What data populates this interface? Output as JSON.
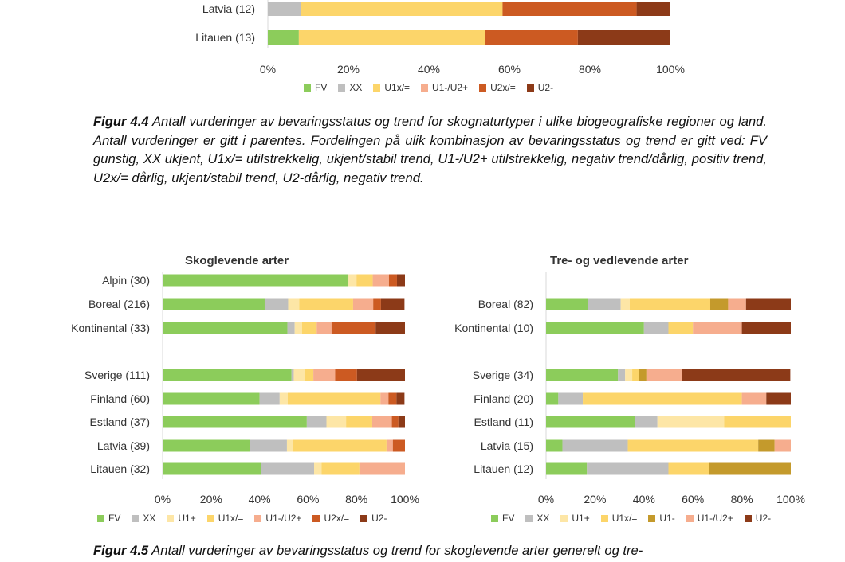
{
  "colors": {
    "FV": "#8ccc5b",
    "XX": "#bfbfbf",
    "U1+": "#fde6a6",
    "U1x": "#fcd56a",
    "U1-": "#c49a2c",
    "U1-/U2+": "#f6ad8e",
    "U2x": "#cc5a22",
    "U2-": "#8c3a18",
    "axis": "#d9d9d9"
  },
  "figure4_4": {
    "caption_label": "Figur 4.4",
    "caption_text": " Antall vurderinger av bevaringsstatus og trend for skognaturtyper i ulike biogeografiske regioner og land. Antall vurderinger er gitt i parentes. Fordelingen på ulik kombinasjon av bevaringsstatus og trend er gitt ved: FV gunstig, XX ukjent, U1x/= utilstrekkelig, ukjent/stabil trend, U1-/U2+ utilstrekkelig, negativ trend/dårlig, positiv trend, U2x/= dårlig, ukjent/stabil trend, U2-dårlig, negativ trend.",
    "legend": [
      {
        "key": "FV",
        "label": "FV"
      },
      {
        "key": "XX",
        "label": "XX"
      },
      {
        "key": "U1x",
        "label": "U1x/="
      },
      {
        "key": "U1-/U2+",
        "label": "U1-/U2+"
      },
      {
        "key": "U2x",
        "label": "U2x/="
      },
      {
        "key": "U2-",
        "label": "U2-"
      }
    ]
  },
  "figure4_5": {
    "caption_label": "Figur 4.5",
    "caption_text": " Antall vurderinger av bevaringsstatus og trend for skoglevende arter generelt og tre-"
  },
  "chart_data": [
    {
      "type": "bar",
      "orientation": "horizontal",
      "stacked": true,
      "title": "",
      "ticks": [
        "0%",
        "20%",
        "40%",
        "60%",
        "80%",
        "100%"
      ],
      "xlim": [
        0,
        100
      ],
      "categories": [
        "Latvia (12)",
        "Litauen (13)"
      ],
      "series": [
        {
          "name": "FV",
          "key": "FV",
          "values": [
            0,
            7.7
          ]
        },
        {
          "name": "XX",
          "key": "XX",
          "values": [
            8.3,
            0
          ]
        },
        {
          "name": "U1x/=",
          "key": "U1x",
          "values": [
            50,
            46.2
          ]
        },
        {
          "name": "U1-/U2+",
          "key": "U1-/U2+",
          "values": [
            0,
            0
          ]
        },
        {
          "name": "U2x/=",
          "key": "U2x",
          "values": [
            33.3,
            23.1
          ]
        },
        {
          "name": "U2-",
          "key": "U2-",
          "values": [
            8.3,
            23.1
          ]
        }
      ]
    },
    {
      "type": "bar",
      "orientation": "horizontal",
      "stacked": true,
      "title": "Skoglevende arter",
      "ticks": [
        "0%",
        "20%",
        "40%",
        "60%",
        "80%",
        "100%"
      ],
      "xlim": [
        0,
        100
      ],
      "categories": [
        "Alpin (30)",
        "Boreal (216)",
        "Kontinental (33)",
        "",
        "Sverige (111)",
        "Finland (60)",
        "Estland (37)",
        "Latvia (39)",
        "Litauen (32)"
      ],
      "legend": [
        {
          "key": "FV",
          "label": "FV"
        },
        {
          "key": "XX",
          "label": "XX"
        },
        {
          "key": "U1+",
          "label": "U1+"
        },
        {
          "key": "U1x",
          "label": "U1x/="
        },
        {
          "key": "U1-/U2+",
          "label": "U1-/U2+"
        },
        {
          "key": "U2x",
          "label": "U2x/="
        },
        {
          "key": "U2-",
          "label": "U2-"
        }
      ],
      "series": [
        {
          "name": "FV",
          "key": "FV",
          "values": [
            76.7,
            42.1,
            51.5,
            null,
            53.2,
            40.0,
            59.5,
            35.9,
            40.6
          ]
        },
        {
          "name": "XX",
          "key": "XX",
          "values": [
            0,
            9.7,
            3.0,
            null,
            0.9,
            8.3,
            8.1,
            15.4,
            21.9
          ]
        },
        {
          "name": "U1+",
          "key": "U1+",
          "values": [
            3.3,
            4.6,
            3.0,
            null,
            4.5,
            3.3,
            8.1,
            2.6,
            3.1
          ]
        },
        {
          "name": "U1x/=",
          "key": "U1x",
          "values": [
            6.7,
            22.2,
            6.1,
            null,
            3.6,
            38.3,
            10.8,
            38.5,
            15.6
          ]
        },
        {
          "name": "U1-/U2+",
          "key": "U1-/U2+",
          "values": [
            6.7,
            8.3,
            6.1,
            null,
            9.0,
            3.3,
            8.1,
            2.6,
            18.8
          ]
        },
        {
          "name": "U2x/=",
          "key": "U2x",
          "values": [
            3.3,
            3.2,
            18.2,
            null,
            9.0,
            3.3,
            2.7,
            5.1,
            0
          ]
        },
        {
          "name": "U2-",
          "key": "U2-",
          "values": [
            3.3,
            9.7,
            12.1,
            null,
            19.8,
            3.3,
            2.7,
            0,
            0
          ]
        }
      ]
    },
    {
      "type": "bar",
      "orientation": "horizontal",
      "stacked": true,
      "title": "Tre- og vedlevende arter",
      "ticks": [
        "0%",
        "20%",
        "40%",
        "60%",
        "80%",
        "100%"
      ],
      "xlim": [
        0,
        100
      ],
      "categories": [
        "",
        "Boreal (82)",
        "Kontinental (10)",
        "",
        "Sverige (34)",
        "Finland (20)",
        "Estland (11)",
        "Latvia (15)",
        "Litauen (12)"
      ],
      "legend": [
        {
          "key": "FV",
          "label": "FV"
        },
        {
          "key": "XX",
          "label": "XX"
        },
        {
          "key": "U1+",
          "label": "U1+"
        },
        {
          "key": "U1x",
          "label": "U1x/="
        },
        {
          "key": "U1-",
          "label": "U1-"
        },
        {
          "key": "U1-/U2+",
          "label": "U1-/U2+"
        },
        {
          "key": "U2-",
          "label": "U2-"
        }
      ],
      "series": [
        {
          "name": "FV",
          "key": "FV",
          "values": [
            null,
            17.1,
            40.0,
            null,
            29.4,
            5.0,
            36.4,
            6.7,
            16.7
          ]
        },
        {
          "name": "XX",
          "key": "XX",
          "values": [
            null,
            13.4,
            10.0,
            null,
            2.9,
            10.0,
            9.1,
            26.7,
            33.3
          ]
        },
        {
          "name": "U1+",
          "key": "U1+",
          "values": [
            null,
            3.7,
            0,
            null,
            2.9,
            0,
            27.3,
            0,
            0
          ]
        },
        {
          "name": "U1x/=",
          "key": "U1x",
          "values": [
            null,
            32.9,
            10.0,
            null,
            2.9,
            65.0,
            27.3,
            53.3,
            16.7
          ]
        },
        {
          "name": "U1-",
          "key": "U1-",
          "values": [
            null,
            7.3,
            0,
            null,
            2.9,
            0,
            0,
            6.7,
            33.3
          ]
        },
        {
          "name": "U1-/U2+",
          "key": "U1-/U2+",
          "values": [
            null,
            7.3,
            20.0,
            null,
            14.7,
            10.0,
            0,
            6.7,
            0
          ]
        },
        {
          "name": "U2-",
          "key": "U2-",
          "values": [
            null,
            18.3,
            20.0,
            null,
            44.1,
            10.0,
            0,
            0,
            0
          ]
        }
      ]
    }
  ]
}
